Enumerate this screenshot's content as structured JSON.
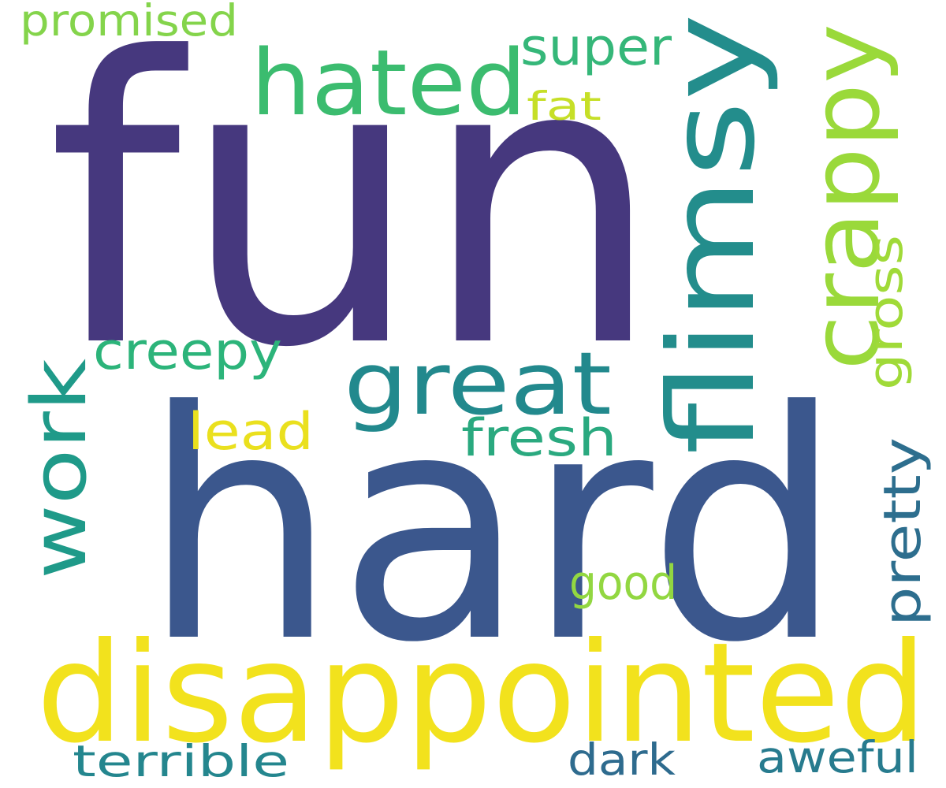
{
  "words": [
    {
      "id": "fun",
      "text": "fun",
      "color": "#46387e"
    },
    {
      "id": "hard",
      "text": "hard",
      "color": "#3b578d"
    },
    {
      "id": "disappointed",
      "text": "disappointed",
      "color": "#f2e21d"
    },
    {
      "id": "flimsy",
      "text": "flimsy",
      "color": "#238d8c"
    },
    {
      "id": "crappy",
      "text": "crappy",
      "color": "#9ad93a"
    },
    {
      "id": "hated",
      "text": "hated",
      "color": "#3bbc6f"
    },
    {
      "id": "great",
      "text": "great",
      "color": "#22898d"
    },
    {
      "id": "work",
      "text": "work",
      "color": "#1f9a89"
    },
    {
      "id": "creepy",
      "text": "creepy",
      "color": "#2cb47a"
    },
    {
      "id": "super",
      "text": "super",
      "color": "#35b779"
    },
    {
      "id": "promised",
      "text": "promised",
      "color": "#84d44b"
    },
    {
      "id": "fat",
      "text": "fat",
      "color": "#c6df27"
    },
    {
      "id": "gross",
      "text": "gross",
      "color": "#a0da38"
    },
    {
      "id": "lead",
      "text": "lead",
      "color": "#eae01e"
    },
    {
      "id": "fresh",
      "text": "fresh",
      "color": "#2aa97f"
    },
    {
      "id": "pretty",
      "text": "pretty",
      "color": "#2d6e8e"
    },
    {
      "id": "good",
      "text": "good",
      "color": "#92d741"
    },
    {
      "id": "terrible",
      "text": "terrible",
      "color": "#24868e"
    },
    {
      "id": "dark",
      "text": "dark",
      "color": "#2e6b8e"
    },
    {
      "id": "aweful",
      "text": "aweful",
      "color": "#277b8e"
    }
  ]
}
